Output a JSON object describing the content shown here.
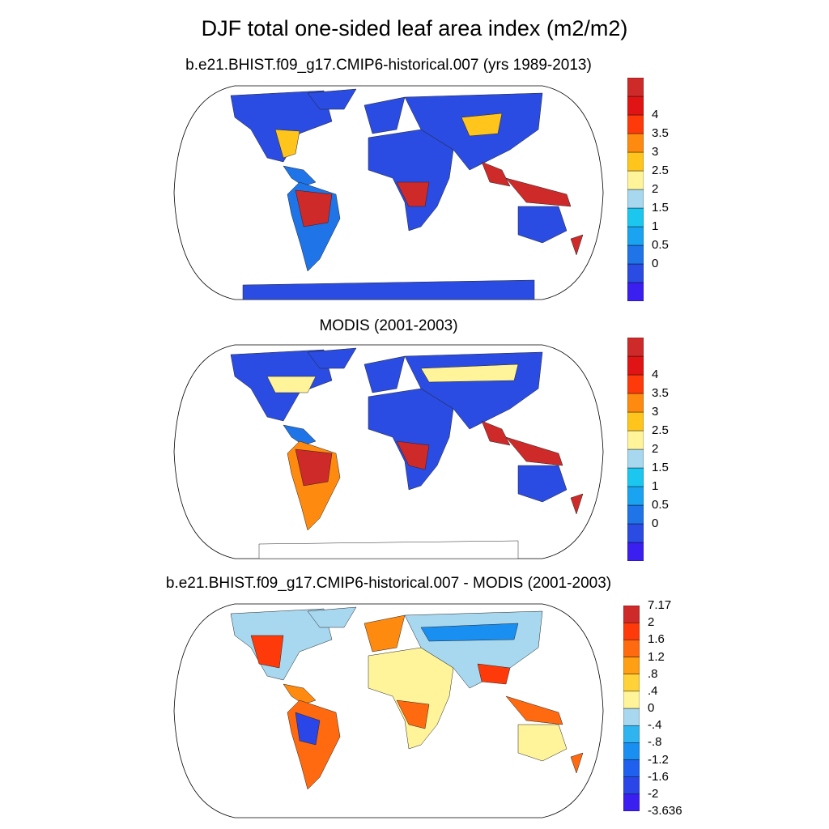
{
  "figure": {
    "title": "DJF total one-sided leaf area index (m2/m2)"
  },
  "panels": [
    {
      "title": "b.e21.BHIST.f09_g17.CMIP6-historical.007 (yrs 1989-2013)",
      "colorbar": {
        "colors": [
          "#3a1ff0",
          "#2a4ce3",
          "#1f74e8",
          "#1aa3f0",
          "#1cc7ef",
          "#a8d8ef",
          "#fff49a",
          "#ffc51d",
          "#ff8a10",
          "#ff3a0a",
          "#e01414",
          "#cf2a2a"
        ],
        "labels": [
          "0",
          "0.5",
          "1",
          "1.5",
          "2",
          "2.5",
          "3",
          "3.5",
          "4"
        ]
      }
    },
    {
      "title": "MODIS (2001-2003)",
      "colorbar": {
        "colors": [
          "#3a1ff0",
          "#2a4ce3",
          "#1f74e8",
          "#1aa3f0",
          "#1cc7ef",
          "#a8d8ef",
          "#fff49a",
          "#ffc51d",
          "#ff8a10",
          "#ff3a0a",
          "#e01414",
          "#cf2a2a"
        ],
        "labels": [
          "0",
          "0.5",
          "1",
          "1.5",
          "2",
          "2.5",
          "3",
          "3.5",
          "4"
        ]
      }
    },
    {
      "title": "b.e21.BHIST.f09_g17.CMIP6-historical.007 - MODIS (2001-2003)",
      "colorbar": {
        "colors": [
          "#3a1ff0",
          "#2a46e8",
          "#2060ee",
          "#1a8ff2",
          "#30b4f0",
          "#a8d8ef",
          "#fff49a",
          "#ffd23a",
          "#ff9f14",
          "#ff6a10",
          "#ff3a0a",
          "#cf2a2a"
        ],
        "labels": [
          "-3.636",
          "-2",
          "-1.6",
          "-1.2",
          "-.8",
          "-.4",
          "0",
          ".4",
          ".8",
          "1.2",
          "1.6",
          "2",
          "7.17"
        ]
      }
    }
  ]
}
